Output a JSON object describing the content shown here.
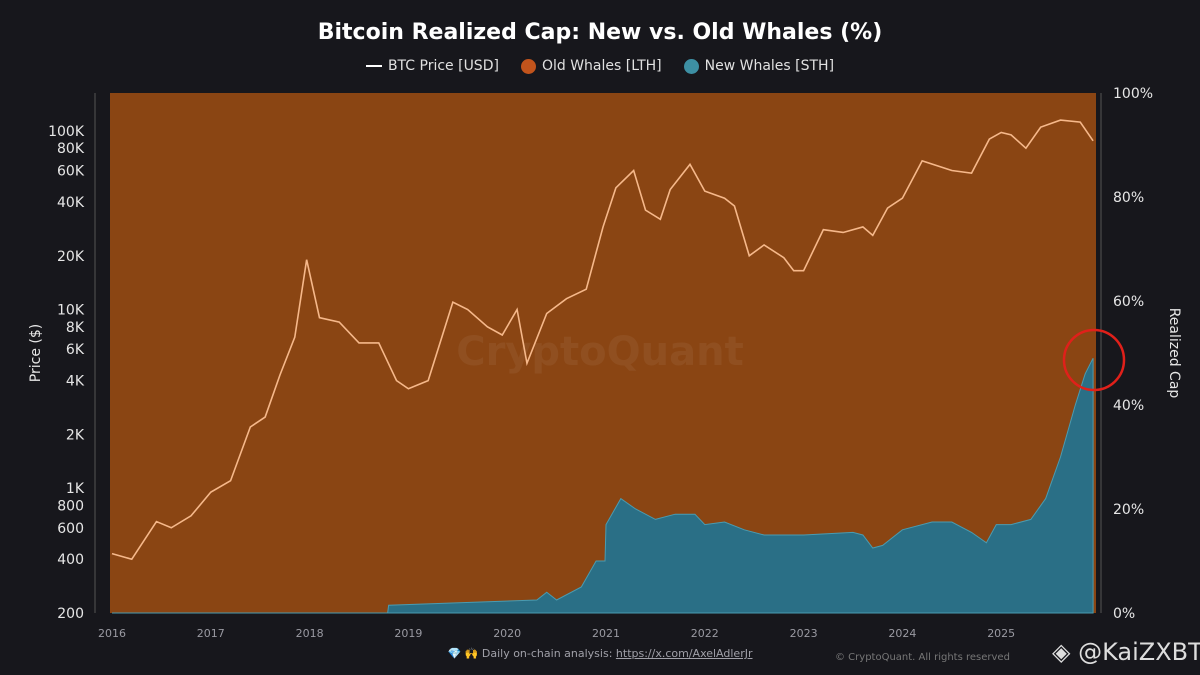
{
  "chart_data": {
    "type": "line+area",
    "title": "Bitcoin Realized Cap: New vs. Old Whales (%)",
    "legend": {
      "placement": "top",
      "items": [
        "BTC Price [USD]",
        "Old Whales [LTH]",
        "New Whales [STH]"
      ]
    },
    "y_left_label": "Price ($)",
    "y_right_label": "Realized Cap",
    "y_left_scale": "log",
    "y_left_range": [
      200,
      163000
    ],
    "y_left_ticks": [
      "200",
      "400",
      "600",
      "800",
      "1K",
      "2K",
      "4K",
      "6K",
      "8K",
      "10K",
      "20K",
      "40K",
      "60K",
      "80K",
      "100K"
    ],
    "y_left_tick_values": [
      200,
      400,
      600,
      800,
      1000,
      2000,
      4000,
      6000,
      8000,
      10000,
      20000,
      40000,
      60000,
      80000,
      100000
    ],
    "y_right_range": [
      0,
      100
    ],
    "y_right_ticks": [
      "0%",
      "20%",
      "40%",
      "60%",
      "80%",
      "100%"
    ],
    "x_ticks": [
      "2016",
      "2017",
      "2018",
      "2019",
      "2020",
      "2021",
      "2022",
      "2023",
      "2024",
      "2025"
    ],
    "x_range": [
      2016,
      2025.94
    ],
    "grid": false,
    "colors": {
      "price": "#f6b88a",
      "old_whales": "#8a4513",
      "new_whales": "#2a6f86",
      "background": "#17171c",
      "annotation": "#e0201a"
    },
    "series": [
      {
        "name": "BTC Price [USD]",
        "x": [
          2016.0,
          2016.2,
          2016.45,
          2016.6,
          2016.8,
          2017.0,
          2017.2,
          2017.4,
          2017.55,
          2017.7,
          2017.85,
          2017.97,
          2018.1,
          2018.3,
          2018.5,
          2018.7,
          2018.88,
          2019.0,
          2019.2,
          2019.45,
          2019.6,
          2019.8,
          2019.95,
          2020.1,
          2020.2,
          2020.4,
          2020.6,
          2020.8,
          2020.97,
          2021.1,
          2021.28,
          2021.4,
          2021.55,
          2021.65,
          2021.85,
          2022.0,
          2022.2,
          2022.3,
          2022.45,
          2022.6,
          2022.8,
          2022.9,
          2023.0,
          2023.2,
          2023.4,
          2023.6,
          2023.7,
          2023.85,
          2024.0,
          2024.2,
          2024.5,
          2024.7,
          2024.88,
          2025.0,
          2025.1,
          2025.25,
          2025.4,
          2025.6,
          2025.8,
          2025.93
        ],
        "values": [
          430,
          400,
          650,
          600,
          700,
          950,
          1100,
          2200,
          2500,
          4300,
          7000,
          19000,
          9000,
          8500,
          6500,
          6500,
          4000,
          3600,
          4000,
          11000,
          10000,
          8000,
          7200,
          10000,
          5000,
          9500,
          11500,
          13000,
          29000,
          48000,
          60000,
          36000,
          32000,
          47000,
          65000,
          46000,
          42000,
          38000,
          20000,
          23000,
          19500,
          16500,
          16500,
          28000,
          27000,
          29000,
          26000,
          37000,
          42000,
          68000,
          60000,
          58000,
          90000,
          98000,
          95000,
          80000,
          105000,
          115000,
          112000,
          88000
        ]
      },
      {
        "name": "New Whales [STH]",
        "x": [
          2016.0,
          2018.79,
          2018.8,
          2020.3,
          2020.4,
          2020.5,
          2020.75,
          2020.9,
          2020.99,
          2021.0,
          2021.15,
          2021.3,
          2021.5,
          2021.7,
          2021.9,
          2022.0,
          2022.2,
          2022.4,
          2022.6,
          2023.0,
          2023.5,
          2023.6,
          2023.7,
          2023.8,
          2024.0,
          2024.3,
          2024.5,
          2024.7,
          2024.85,
          2024.95,
          2025.1,
          2025.3,
          2025.45,
          2025.6,
          2025.75,
          2025.85,
          2025.93
        ],
        "values": [
          0,
          0,
          1.5,
          2.5,
          4,
          2.5,
          5,
          10,
          10,
          17,
          22,
          20,
          18,
          19,
          19,
          17,
          17.5,
          16,
          15,
          15,
          15.5,
          15,
          12.5,
          13,
          16,
          17.5,
          17.5,
          15.5,
          13.5,
          17,
          17,
          18,
          22,
          30,
          40,
          46,
          49
        ]
      },
      {
        "name": "Old Whales [LTH]",
        "note_values": "100 minus New Whales"
      }
    ]
  },
  "watermark": "CryptoQuant",
  "footer": {
    "icons": "💎 🙌",
    "text": "Daily on-chain analysis:",
    "link": "https://x.com/AxelAdlerJr"
  },
  "copyright": "© CryptoQuant. All rights reserved",
  "credit": "@KaiZXBT"
}
